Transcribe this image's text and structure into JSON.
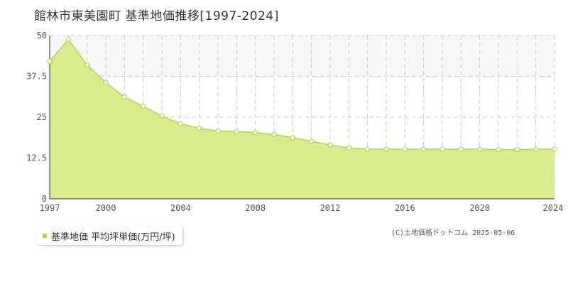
{
  "chart_data": {
    "type": "area",
    "title": "館林市東美園町 基準地価推移[1997-2024]",
    "xlabel": "",
    "ylabel": "",
    "x": [
      1997,
      1998,
      1999,
      2000,
      2001,
      2002,
      2003,
      2004,
      2005,
      2006,
      2007,
      2008,
      2009,
      2010,
      2011,
      2012,
      2013,
      2014,
      2015,
      2016,
      2017,
      2018,
      2019,
      2020,
      2021,
      2022,
      2023,
      2024
    ],
    "series": [
      {
        "name": "基準地価 平均坪単価(万円/坪)",
        "values": [
          42.1,
          48.8,
          41.0,
          35.6,
          31.2,
          28.3,
          25.4,
          23.0,
          21.6,
          20.8,
          20.6,
          20.3,
          19.7,
          18.7,
          17.6,
          16.5,
          15.6,
          15.2,
          15.2,
          15.2,
          15.2,
          15.2,
          15.2,
          15.2,
          15.1,
          15.1,
          15.2,
          15.2
        ]
      }
    ],
    "xlim": [
      1997,
      2024
    ],
    "ylim": [
      0,
      50
    ],
    "x_ticks": [
      "1997",
      "2000",
      "2004",
      "2008",
      "2012",
      "2016",
      "2020",
      "2024"
    ],
    "y_ticks": [
      "0",
      "12.5",
      "25",
      "37.5",
      "50"
    ],
    "grid": true,
    "legend_position": "bottom-left",
    "colors": {
      "fill": "#d8eb8f",
      "line": "#b5d842",
      "marker_fill": "#ffffff",
      "grid": "#cccccc",
      "axis": "#333333"
    }
  },
  "legend": {
    "label": "基準地価 平均坪単価(万円/坪)"
  },
  "credit": "(C)土地価格ドットコム 2025-05-06"
}
